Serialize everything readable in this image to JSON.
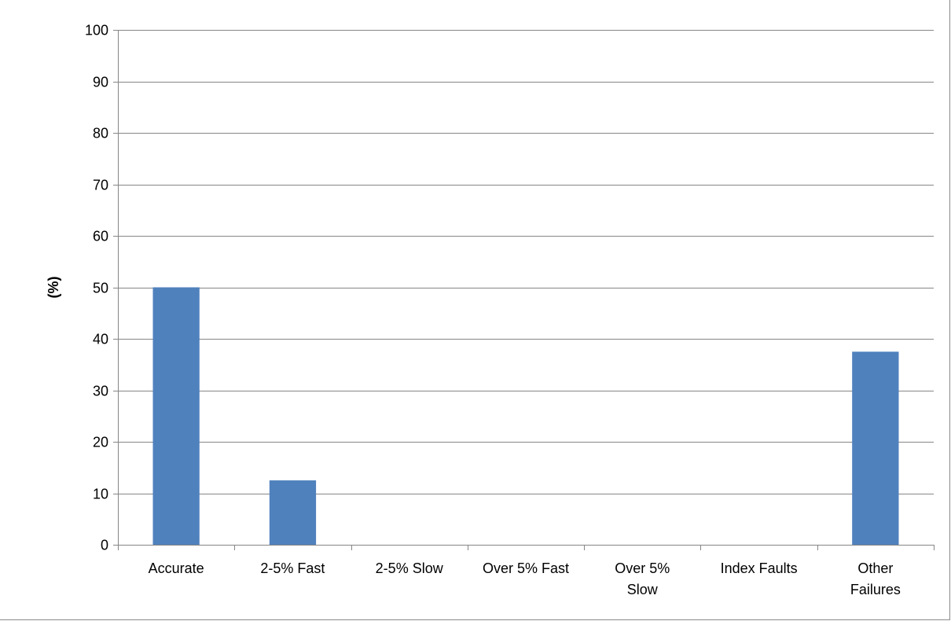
{
  "chart_data": {
    "type": "bar",
    "title": "",
    "xlabel": "",
    "ylabel": "(%)",
    "ylim": [
      0,
      100
    ],
    "yticks": [
      0,
      10,
      20,
      30,
      40,
      50,
      60,
      70,
      80,
      90,
      100
    ],
    "grid": true,
    "categories": [
      [
        "Accurate"
      ],
      [
        "2-5% Fast"
      ],
      [
        "2-5% Slow"
      ],
      [
        "Over 5% Fast"
      ],
      [
        "Over 5%",
        "Slow"
      ],
      [
        "Index Faults"
      ],
      [
        "Other",
        "Failures"
      ]
    ],
    "values": [
      50,
      12.5,
      0,
      0,
      0,
      0,
      37.5
    ],
    "bar_color": "#4f81bd",
    "grid_color": "#868686"
  }
}
